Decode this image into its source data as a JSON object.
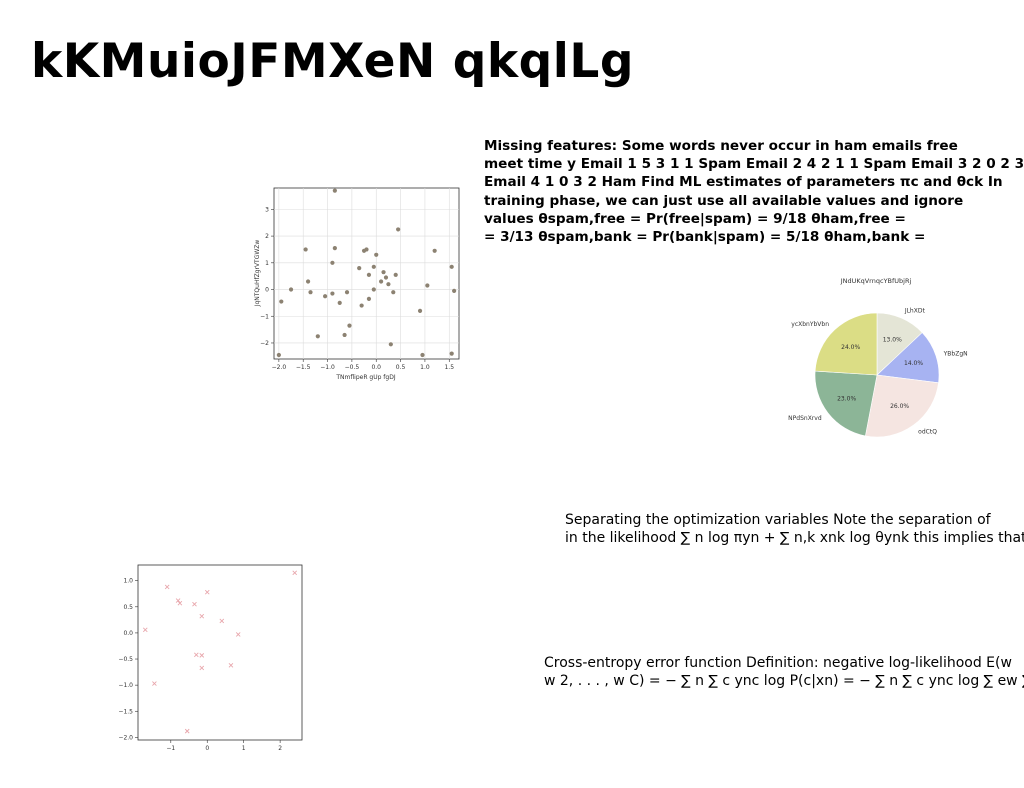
{
  "title": "kKMuioJFMXeN qkqlLg",
  "text_blocks": {
    "missing_features": [
      "Missing features: Some words never occur in ham emails free",
      "meet time y Email 1 5 3 1 1 Spam Email 2 4 2 1 1 Spam Email 3 2 0 2 3",
      "Email 4 1 0 3 2 Ham Find ML estimates of parameters πc and θck In",
      "training phase, we can just use all available values and ignore",
      "values θspam,free = Pr(free|spam) = 9/18 θham,free =",
      "= 3/13 θspam,bank = Pr(bank|spam) = 5/18 θham,bank ="
    ],
    "separating": [
      "Separating the optimization variables Note the separation of",
      "in the likelihood ∑ n log πyn + ∑ n,k xnk log θynk this implies that"
    ],
    "cross_entropy": [
      "Cross-entropy error function Definition: negative log-likelihood E(w",
      "w 2, . . . , w C) = − ∑ n ∑ c ync log P(c|xn) = − ∑ n ∑ c ync log ∑ ew ∑ c"
    ]
  },
  "chart_data": [
    {
      "type": "scatter",
      "xlabel": "TNmflipeR gUp fgDJ",
      "ylabel": "JqNTQuHfZgrVTGWZw",
      "xlim": [
        -2.1,
        1.7
      ],
      "ylim": [
        -2.6,
        3.8
      ],
      "xticks": [
        "−2.0",
        "−1.5",
        "−1.0",
        "−0.5",
        "0.0",
        "0.5",
        "1.0",
        "1.5"
      ],
      "xtick_values": [
        -2.0,
        -1.5,
        -1.0,
        -0.5,
        0.0,
        0.5,
        1.0,
        1.5
      ],
      "yticks": [
        "−2",
        "−1",
        "0",
        "1",
        "2",
        "3"
      ],
      "ytick_values": [
        -2,
        -1,
        0,
        1,
        2,
        3
      ],
      "grid": true,
      "color": "#8c8272",
      "x": [
        -0.85,
        -1.95,
        -1.75,
        -1.45,
        -1.4,
        -1.35,
        -1.2,
        -1.05,
        -0.9,
        -0.9,
        -0.85,
        -0.75,
        -0.65,
        -0.6,
        -0.55,
        -0.35,
        -0.3,
        -0.25,
        -0.2,
        -0.15,
        -0.15,
        -0.05,
        -0.05,
        0.0,
        0.1,
        0.15,
        0.2,
        0.25,
        0.35,
        0.4,
        0.45,
        0.9,
        0.95,
        1.05,
        1.2,
        1.55,
        1.55,
        1.6,
        0.3,
        -2.0
      ],
      "y": [
        3.7,
        -0.45,
        0.0,
        1.5,
        0.3,
        -0.1,
        -1.75,
        -0.25,
        1.0,
        -0.15,
        1.55,
        -0.5,
        -1.7,
        -0.1,
        -1.35,
        0.8,
        -0.6,
        1.45,
        1.5,
        0.55,
        -0.35,
        0.0,
        0.85,
        1.3,
        0.3,
        0.65,
        0.45,
        0.2,
        -0.1,
        0.55,
        2.25,
        -0.8,
        -2.45,
        0.15,
        1.45,
        0.85,
        -2.4,
        -0.05,
        -2.05,
        -2.45
      ]
    },
    {
      "type": "pie",
      "title": "JNdUKqVrnqcYBfUbjRj",
      "labels": [
        "JLhXDt",
        "YBbZgN",
        "odCtQ",
        "NPdSnXrvd",
        "ycXbnYbVbn"
      ],
      "values": [
        13.0,
        14.0,
        26.0,
        23.0,
        24.0
      ],
      "value_labels": [
        "13.0%",
        "14.0%",
        "26.0%",
        "23.0%",
        "24.0%"
      ],
      "colors": [
        "#e4e5d6",
        "#a7b3f2",
        "#f5e5e1",
        "#8cb597",
        "#dbdd85"
      ],
      "start_angle_deg": 90,
      "direction": "clockwise"
    },
    {
      "type": "scatter",
      "xlim": [
        -1.9,
        2.6
      ],
      "ylim": [
        -2.05,
        1.3
      ],
      "xticks": [
        "−1",
        "0",
        "1",
        "2"
      ],
      "xtick_values": [
        -1,
        0,
        1,
        2
      ],
      "yticks": [
        "−2.0",
        "−1.5",
        "−1.0",
        "−0.5",
        "0.0",
        "0.5",
        "1.0"
      ],
      "ytick_values": [
        -2.0,
        -1.5,
        -1.0,
        -0.5,
        0.0,
        0.5,
        1.0
      ],
      "grid": false,
      "marker": "x",
      "color": "#e8a6ac",
      "x": [
        -1.1,
        -0.8,
        -0.75,
        -0.35,
        0.0,
        -0.15,
        0.4,
        0.85,
        -0.3,
        -0.15,
        -0.15,
        0.65,
        -1.7,
        -1.45,
        -0.55,
        2.4
      ],
      "y": [
        0.88,
        0.62,
        0.57,
        0.55,
        0.78,
        0.32,
        0.23,
        -0.03,
        -0.42,
        -0.43,
        -0.67,
        -0.62,
        0.06,
        -0.97,
        -1.88,
        1.15
      ]
    }
  ]
}
